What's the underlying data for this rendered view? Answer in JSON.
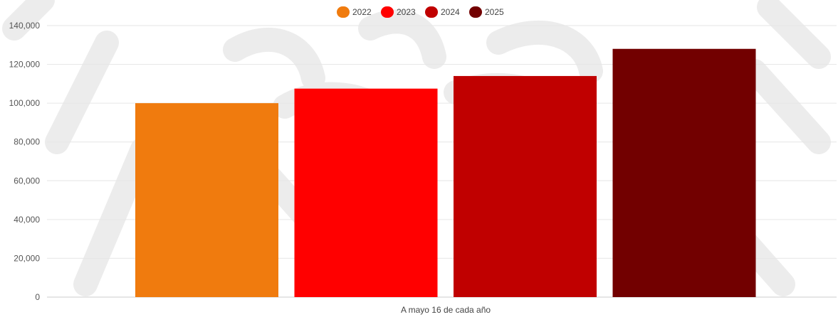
{
  "chart_data": {
    "type": "bar",
    "xlabel": "A mayo 16 de cada año",
    "ylabel": "",
    "ylim": [
      0,
      140000
    ],
    "yticks": [
      0,
      20000,
      40000,
      60000,
      80000,
      100000,
      120000,
      140000
    ],
    "yticks_labels": [
      "0",
      "20,000",
      "40,000",
      "60,000",
      "80,000",
      "100,000",
      "120,000",
      "140,000"
    ],
    "grid": true,
    "legend_position": "top-center",
    "series": [
      {
        "name": "2022",
        "value": 100000,
        "color": "#f07b0e"
      },
      {
        "name": "2023",
        "value": 107500,
        "color": "#ff0000"
      },
      {
        "name": "2024",
        "value": 114000,
        "color": "#c00000"
      },
      {
        "name": "2025",
        "value": 128000,
        "color": "#720000"
      }
    ]
  }
}
